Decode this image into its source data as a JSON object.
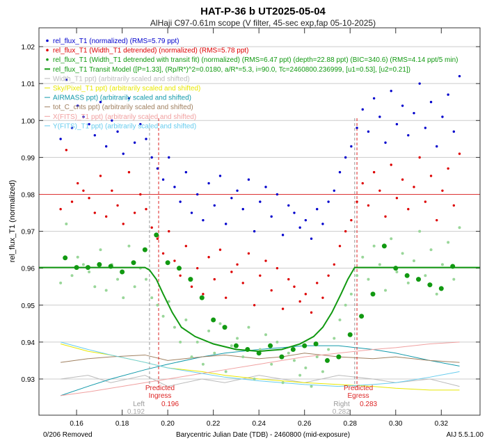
{
  "chart_data": {
    "type": "scatter",
    "title": "HAT-P-36 b  UT2025-05-04",
    "subtitle": "AlHaji C97-0.61m scope (V filter, 45-sec exp,fap 05-10-2025)",
    "xlabel": "Barycentric Julian Date (TDB) - 2460800 (mid-exposure)",
    "ylabel": "rel_flux_T1 (normalized)",
    "xlim": [
      0.1435,
      0.337
    ],
    "ylim": [
      0.9202,
      1.0251
    ],
    "grid": true,
    "legend_placement": "top-left",
    "xticks": [
      "0.16",
      "0.18",
      "0.20",
      "0.22",
      "0.24",
      "0.26",
      "0.28",
      "0.30",
      "0.32"
    ],
    "yticks": [
      "0.93",
      "0.94",
      "0.95",
      "0.96",
      "0.97",
      "0.98",
      "0.99",
      "1.00",
      "1.01",
      "1.02"
    ],
    "removed_note": "0/206 Removed",
    "version": "AIJ 5.5.1.00",
    "legend": [
      {
        "text": "rel_flux_T1 (normalized) (RMS=5.79 ppt)",
        "color": "#0000cc",
        "marker": "dot"
      },
      {
        "text": "rel_flux_T1 (Width_T1 detrended) (normalized) (RMS=5.78 ppt)",
        "color": "#dd0000",
        "marker": "dot"
      },
      {
        "text": "rel_flux_T1 (Width_T1 detrended with transit fit) (normalized) (RMS=6.47 ppt) (depth=22.88 ppt) (BIC=340.6) (RMS=4.14 ppt/5 min)",
        "color": "#119911",
        "marker": "dot"
      },
      {
        "text": "rel_flux_T1 Transit Model ([P=1.33], (Rp/R*)^2=0.0180, a/R*=5.3, i=90.0, Tc=2460800.236999, [u1=0.53], [u2=0.21])",
        "color": "#119911",
        "marker": "line"
      },
      {
        "text": "Width_T1 ppt) (arbitrarily scaled and shifted)",
        "color": "#bbbbbb",
        "marker": "line"
      },
      {
        "text": "Sky/Pixel_T1 ppt) (arbitrarily scaled and shifted)",
        "color": "#e8e800",
        "marker": "line"
      },
      {
        "text": "AIRMASS ppt) (arbitrarily scaled and shifted)",
        "color": "#1199aa",
        "marker": "line"
      },
      {
        "text": "tot_C_cnts ppt) (arbitrarily scaled and shifted)",
        "color": "#a08060",
        "marker": "line"
      },
      {
        "text": "X(FITS)_T1 ppt) (arbitrarily scaled and shifted)",
        "color": "#f0a0a0",
        "marker": "line"
      },
      {
        "text": "Y(FITS)_T1 ppt) (arbitrarily scaled and shifted)",
        "color": "#66ccee",
        "marker": "line"
      }
    ],
    "x": [
      0.153,
      0.1555,
      0.158,
      0.1605,
      0.163,
      0.1655,
      0.168,
      0.1705,
      0.173,
      0.1755,
      0.178,
      0.1805,
      0.183,
      0.1855,
      0.188,
      0.1905,
      0.193,
      0.1955,
      0.198,
      0.2005,
      0.203,
      0.2055,
      0.208,
      0.2105,
      0.213,
      0.2155,
      0.218,
      0.2205,
      0.223,
      0.2255,
      0.228,
      0.2305,
      0.233,
      0.2355,
      0.238,
      0.2405,
      0.243,
      0.2455,
      0.248,
      0.2505,
      0.253,
      0.2555,
      0.258,
      0.2605,
      0.263,
      0.2655,
      0.268,
      0.2705,
      0.273,
      0.2755,
      0.278,
      0.2805,
      0.283,
      0.2855,
      0.288,
      0.2905,
      0.293,
      0.2955,
      0.298,
      0.3005,
      0.303,
      0.3055,
      0.308,
      0.3105,
      0.313,
      0.3155,
      0.318,
      0.3205,
      0.323,
      0.3255,
      0.328
    ],
    "series": [
      {
        "name": "rel_flux_T1 (normalized)",
        "color": "#0000cc",
        "style": "dot",
        "y": [
          0.995,
          1.011,
          0.998,
          1.004,
          1.001,
          0.999,
          0.996,
          1.005,
          0.993,
          1.0,
          0.997,
          0.991,
          1.006,
          0.994,
          0.999,
          0.995,
          0.99,
          0.987,
          0.984,
          0.99,
          0.982,
          0.978,
          0.986,
          0.975,
          0.98,
          0.973,
          0.983,
          0.977,
          0.985,
          0.972,
          0.979,
          0.981,
          0.976,
          0.984,
          0.97,
          0.978,
          0.982,
          0.974,
          0.98,
          0.969,
          0.977,
          0.975,
          0.971,
          0.973,
          0.968,
          0.976,
          0.972,
          0.978,
          0.981,
          0.986,
          0.99,
          0.993,
          0.998,
          1.003,
          0.997,
          1.006,
          1.001,
          0.994,
          1.008,
          0.999,
          1.004,
          0.996,
          1.002,
          1.01,
          0.998,
          1.005,
          0.993,
          1.001,
          1.007,
          0.997,
          1.012
        ]
      },
      {
        "name": "rel_flux_T1 (Width_T1 detrended) (normalized)",
        "color": "#dd0000",
        "style": "dot",
        "y": [
          0.976,
          0.992,
          0.978,
          0.983,
          0.981,
          0.979,
          0.975,
          0.985,
          0.974,
          0.981,
          0.977,
          0.972,
          0.986,
          0.975,
          0.98,
          0.976,
          0.971,
          0.968,
          0.964,
          0.97,
          0.962,
          0.958,
          0.966,
          0.955,
          0.96,
          0.953,
          0.963,
          0.957,
          0.965,
          0.952,
          0.959,
          0.961,
          0.956,
          0.964,
          0.95,
          0.958,
          0.962,
          0.954,
          0.96,
          0.949,
          0.957,
          0.955,
          0.951,
          0.953,
          0.948,
          0.956,
          0.952,
          0.958,
          0.961,
          0.966,
          0.97,
          0.973,
          0.978,
          0.983,
          0.977,
          0.986,
          0.981,
          0.974,
          0.988,
          0.979,
          0.984,
          0.976,
          0.982,
          0.99,
          0.978,
          0.985,
          0.973,
          0.981,
          0.987,
          0.977,
          0.991
        ]
      },
      {
        "name": "rel_flux_T1 (Width_T1 detrended with transit fit) (normalized)",
        "color": "#99d699",
        "style": "dot",
        "y": [
          0.956,
          0.972,
          0.958,
          0.963,
          0.961,
          0.959,
          0.955,
          0.965,
          0.954,
          0.961,
          0.957,
          0.952,
          0.966,
          0.955,
          0.96,
          0.957,
          0.952,
          0.95,
          0.947,
          0.951,
          0.944,
          0.94,
          0.946,
          0.936,
          0.94,
          0.934,
          0.943,
          0.937,
          0.945,
          0.932,
          0.939,
          0.941,
          0.936,
          0.944,
          0.93,
          0.938,
          0.942,
          0.934,
          0.94,
          0.929,
          0.937,
          0.935,
          0.931,
          0.933,
          0.928,
          0.936,
          0.932,
          0.938,
          0.941,
          0.946,
          0.95,
          0.953,
          0.958,
          0.963,
          0.957,
          0.966,
          0.961,
          0.954,
          0.968,
          0.959,
          0.964,
          0.956,
          0.962,
          0.97,
          0.958,
          0.965,
          0.953,
          0.961,
          0.967,
          0.957,
          0.971
        ]
      }
    ],
    "binned": {
      "color": "#119911",
      "x": [
        0.155,
        0.16,
        0.165,
        0.17,
        0.175,
        0.18,
        0.185,
        0.19,
        0.195,
        0.2,
        0.205,
        0.21,
        0.215,
        0.22,
        0.225,
        0.23,
        0.235,
        0.24,
        0.245,
        0.25,
        0.255,
        0.26,
        0.265,
        0.27,
        0.275,
        0.28,
        0.285,
        0.29,
        0.295,
        0.3,
        0.305,
        0.31,
        0.315,
        0.32,
        0.325
      ],
      "y": [
        0.9628,
        0.9602,
        0.9602,
        0.961,
        0.9605,
        0.959,
        0.9615,
        0.965,
        0.969,
        0.9615,
        0.96,
        0.957,
        0.952,
        0.946,
        0.944,
        0.939,
        0.938,
        0.937,
        0.939,
        0.936,
        0.938,
        0.939,
        0.9395,
        0.935,
        0.936,
        0.942,
        0.947,
        0.953,
        0.966,
        0.96,
        0.958,
        0.957,
        0.9555,
        0.9545,
        0.9605
      ]
    },
    "model": {
      "color": "#119911",
      "x": [
        0.1435,
        0.19,
        0.192,
        0.195,
        0.198,
        0.202,
        0.206,
        0.212,
        0.22,
        0.23,
        0.24,
        0.25,
        0.258,
        0.264,
        0.268,
        0.272,
        0.276,
        0.279,
        0.282,
        0.337
      ],
      "y": [
        0.9602,
        0.9602,
        0.9595,
        0.957,
        0.953,
        0.948,
        0.944,
        0.9415,
        0.9395,
        0.938,
        0.9375,
        0.938,
        0.9395,
        0.9415,
        0.944,
        0.948,
        0.953,
        0.957,
        0.9602,
        0.9602
      ]
    },
    "red_baseline": 0.98,
    "aux": {
      "x": [
        0.153,
        0.165,
        0.175,
        0.19,
        0.2,
        0.215,
        0.225,
        0.24,
        0.25,
        0.26,
        0.275,
        0.29,
        0.3,
        0.315,
        0.328
      ],
      "lines": [
        {
          "color": "#bbbbbb",
          "y": [
            0.93,
            0.931,
            0.929,
            0.931,
            0.928,
            0.93,
            0.929,
            0.931,
            0.93,
            0.929,
            0.931,
            0.93,
            0.929,
            0.93,
            0.928
          ]
        },
        {
          "color": "#e8e800",
          "y": [
            0.9395,
            0.9375,
            0.9365,
            0.9345,
            0.933,
            0.932,
            0.931,
            0.93,
            0.9295,
            0.929,
            0.9285,
            0.928,
            0.9275,
            0.927,
            0.927
          ]
        },
        {
          "color": "#1199aa",
          "y": [
            0.9255,
            0.928,
            0.93,
            0.9325,
            0.934,
            0.936,
            0.937,
            0.938,
            0.9385,
            0.939,
            0.939,
            0.938,
            0.937,
            0.935,
            0.9335
          ]
        },
        {
          "color": "#a08060",
          "y": [
            0.9345,
            0.9355,
            0.936,
            0.9365,
            0.935,
            0.936,
            0.9365,
            0.9355,
            0.936,
            0.937,
            0.936,
            0.9355,
            0.936,
            0.935,
            0.9345
          ]
        },
        {
          "color": "#f0a0a0",
          "y": [
            0.9255,
            0.9265,
            0.9275,
            0.929,
            0.93,
            0.9315,
            0.9325,
            0.934,
            0.935,
            0.936,
            0.937,
            0.938,
            0.9385,
            0.9395,
            0.94
          ]
        },
        {
          "color": "#66ccee",
          "y": [
            0.94,
            0.938,
            0.9365,
            0.9345,
            0.933,
            0.9315,
            0.9305,
            0.9295,
            0.929,
            0.9285,
            0.928,
            0.9285,
            0.929,
            0.9305,
            0.932
          ]
        }
      ]
    },
    "markers": [
      {
        "x": 0.192,
        "color": "#999999",
        "label1": "Left",
        "label2": "",
        "value": "0.192"
      },
      {
        "x": 0.196,
        "color": "#dd2222",
        "label1": "Predicted",
        "label2": "Ingress",
        "value": "0.196"
      },
      {
        "x": 0.282,
        "color": "#999999",
        "label1": "Right",
        "label2": "",
        "value": "0.282"
      },
      {
        "x": 0.283,
        "color": "#dd2222",
        "label1": "Predicted",
        "label2": "Egress",
        "value": "0.283"
      }
    ]
  }
}
